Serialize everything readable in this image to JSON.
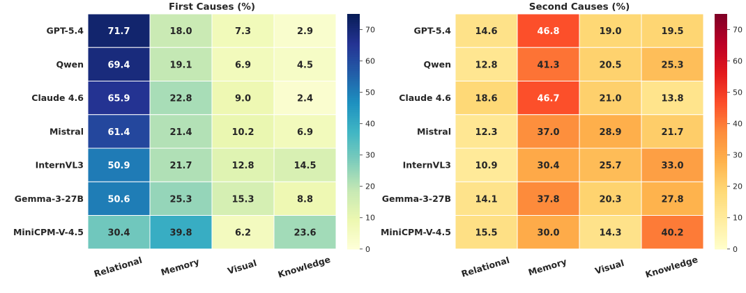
{
  "chart_data": [
    {
      "type": "heatmap",
      "title": "First Causes (%)",
      "rows": [
        "GPT-5.4",
        "Qwen",
        "Claude 4.6",
        "Mistral",
        "InternVL3",
        "Gemma-3-27B",
        "MiniCPM-V-4.5"
      ],
      "columns": [
        "Relational",
        "Memory",
        "Visual",
        "Knowledge"
      ],
      "values": [
        [
          71.7,
          18.0,
          7.3,
          2.9
        ],
        [
          69.4,
          19.1,
          6.9,
          4.5
        ],
        [
          65.9,
          22.8,
          9.0,
          2.4
        ],
        [
          61.4,
          21.4,
          10.2,
          6.9
        ],
        [
          50.9,
          21.7,
          12.8,
          14.5
        ],
        [
          50.6,
          25.3,
          15.3,
          8.8
        ],
        [
          30.4,
          39.8,
          6.2,
          23.6
        ]
      ],
      "colormap": "YlGnBu",
      "colorbar_ticks": [
        "0",
        "10",
        "20",
        "30",
        "40",
        "50",
        "60",
        "70"
      ],
      "colorbar_range": [
        0,
        75
      ]
    },
    {
      "type": "heatmap",
      "title": "Second Causes (%)",
      "rows": [
        "GPT-5.4",
        "Qwen",
        "Claude 4.6",
        "Mistral",
        "InternVL3",
        "Gemma-3-27B",
        "MiniCPM-V-4.5"
      ],
      "columns": [
        "Relational",
        "Memory",
        "Visual",
        "Knowledge"
      ],
      "values": [
        [
          14.6,
          46.8,
          19.0,
          19.5
        ],
        [
          12.8,
          41.3,
          20.5,
          25.3
        ],
        [
          18.6,
          46.7,
          21.0,
          13.8
        ],
        [
          12.3,
          37.0,
          28.9,
          21.7
        ],
        [
          10.9,
          30.4,
          25.7,
          33.0
        ],
        [
          14.1,
          37.8,
          20.3,
          27.8
        ],
        [
          15.5,
          30.0,
          14.3,
          40.2
        ]
      ],
      "colormap": "YlOrRd",
      "colorbar_ticks": [
        "0",
        "10",
        "20",
        "30",
        "40",
        "50",
        "60",
        "70"
      ],
      "colorbar_range": [
        0,
        75
      ]
    }
  ],
  "colors": {
    "YlGnBu": [
      "#ffffd9",
      "#edf8b1",
      "#c7e9b4",
      "#7fcdbb",
      "#41b6c4",
      "#1d91c0",
      "#225ea8",
      "#253494",
      "#081d58"
    ],
    "YlOrRd": [
      "#ffffcc",
      "#ffeda0",
      "#fed976",
      "#feb24c",
      "#fd8d3c",
      "#fc4e2a",
      "#e31a1c",
      "#bd0026",
      "#800026"
    ]
  }
}
